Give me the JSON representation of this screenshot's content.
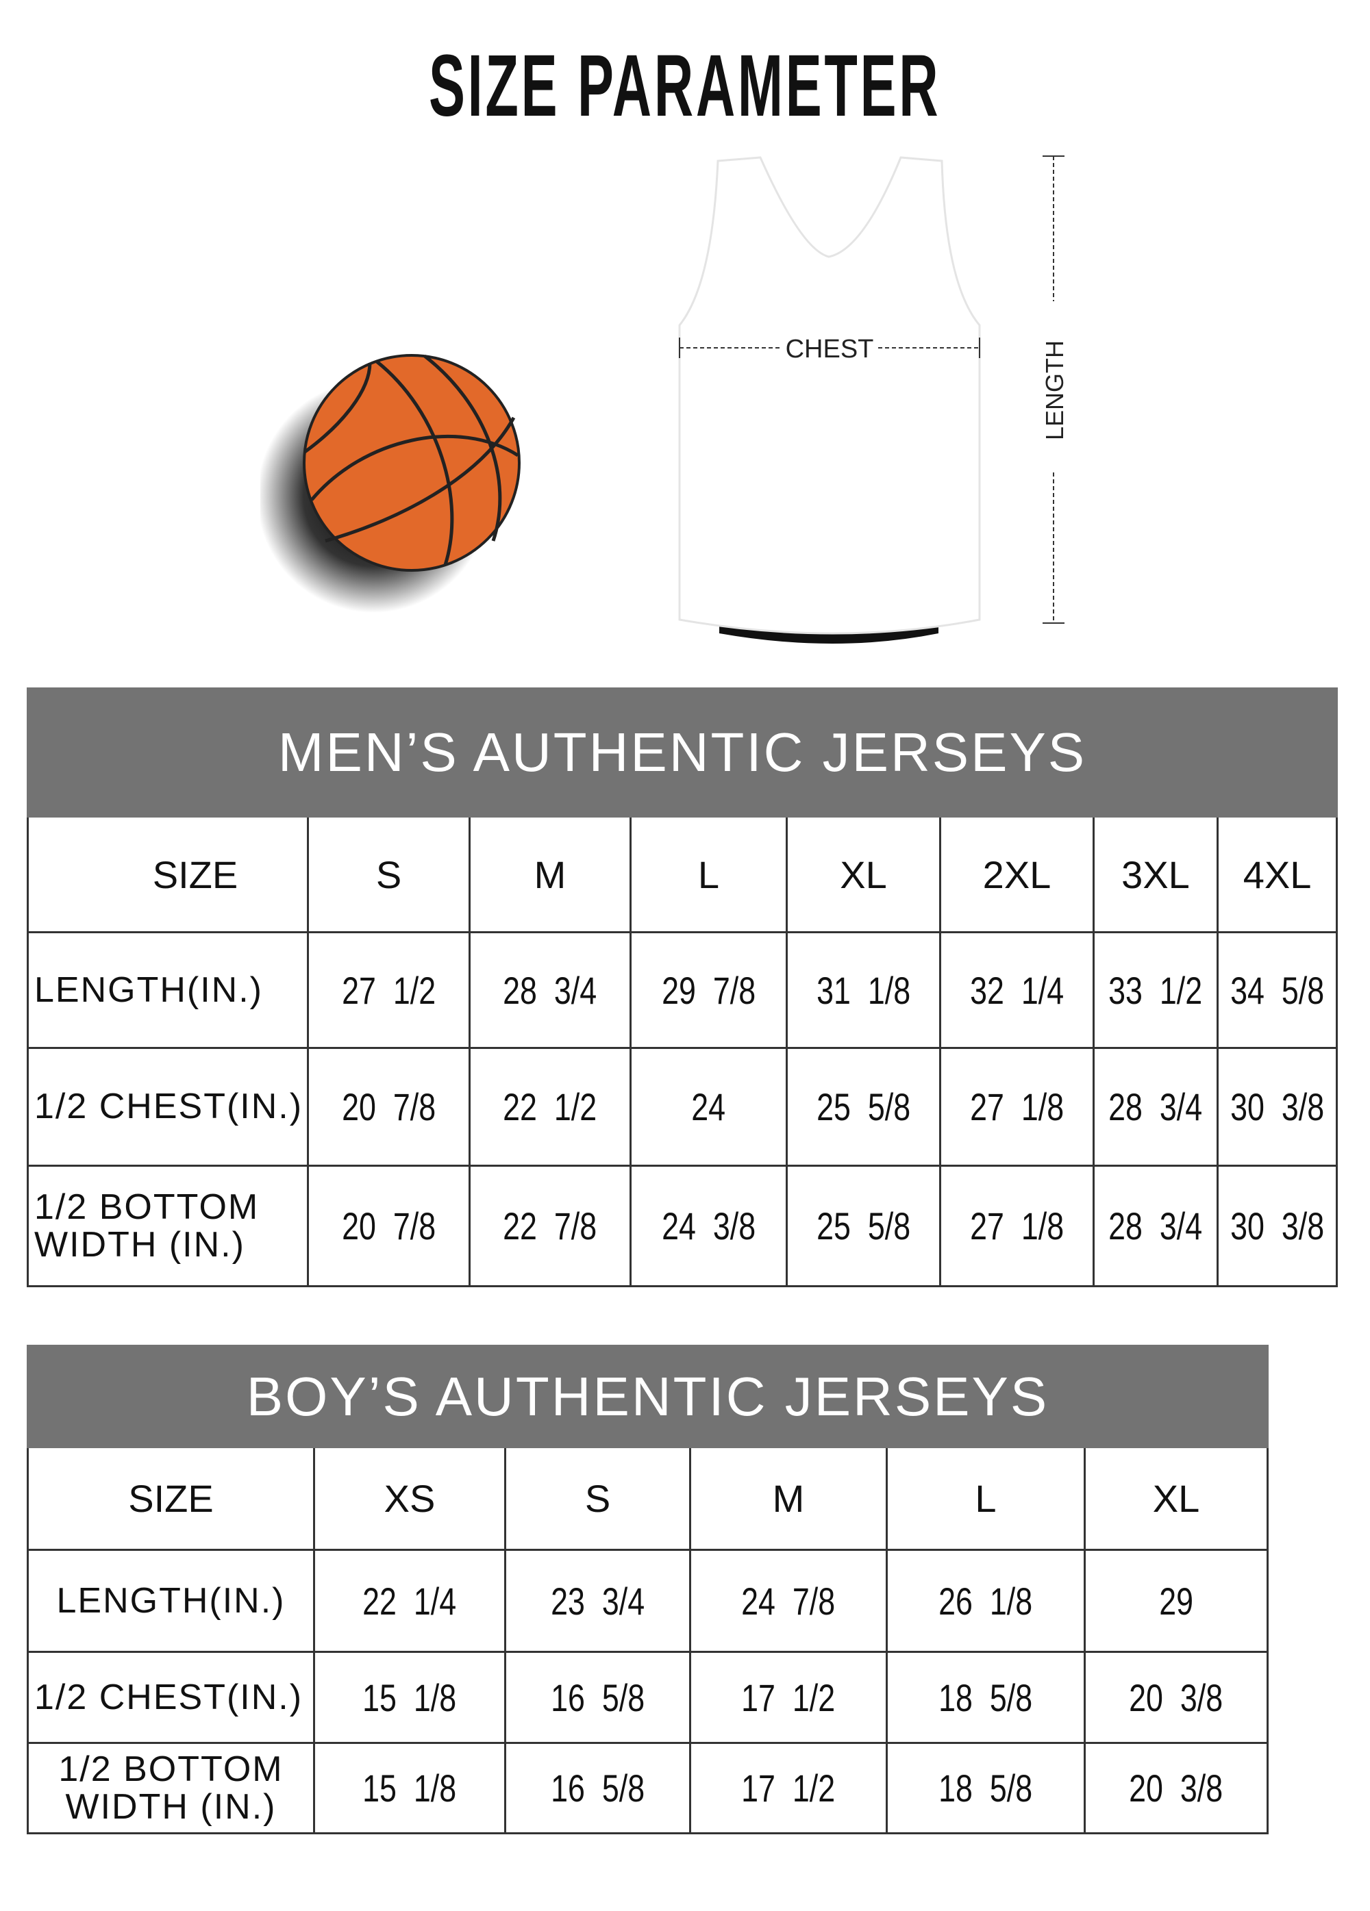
{
  "title": "SIZE PARAMETER",
  "diagram": {
    "chest_label": "CHEST",
    "length_label": "LENGTH",
    "ball_color": "#e2692a"
  },
  "colors": {
    "header_bg": "#737373",
    "header_text": "#ffffff"
  },
  "men": {
    "title": "MEN’S AUTHENTIC JERSEYS",
    "size_label": "SIZE",
    "sizes": [
      "S",
      "M",
      "L",
      "XL",
      "2XL",
      "3XL",
      "4XL"
    ],
    "rows": [
      {
        "label": "LENGTH(IN.)",
        "values": [
          "27  1/2",
          "28  3/4",
          "29  7/8",
          "31  1/8",
          "32  1/4",
          "33  1/2",
          "34  5/8"
        ]
      },
      {
        "label": "1/2 CHEST(IN.)",
        "values": [
          "20  7/8",
          "22  1/2",
          "24",
          "25  5/8",
          "27  1/8",
          "28  3/4",
          "30  3/8"
        ]
      },
      {
        "label": "1/2 BOTTOM WIDTH  (IN.)",
        "values": [
          "20  7/8",
          "22  7/8",
          "24  3/8",
          "25  5/8",
          "27  1/8",
          "28  3/4",
          "30  3/8"
        ]
      }
    ]
  },
  "boy": {
    "title": "BOY’S AUTHENTIC JERSEYS",
    "size_label": "SIZE",
    "sizes": [
      "XS",
      "S",
      "M",
      "L",
      "XL"
    ],
    "rows": [
      {
        "label": "LENGTH(IN.)",
        "values": [
          "22  1/4",
          "23  3/4",
          "24  7/8",
          "26  1/8",
          "29"
        ]
      },
      {
        "label": "1/2 CHEST(IN.)",
        "values": [
          "15  1/8",
          "16  5/8",
          "17  1/2",
          "18  5/8",
          "20  3/8"
        ]
      },
      {
        "label": "1/2 BOTTOM WIDTH  (IN.)",
        "values": [
          "15  1/8",
          "16  5/8",
          "17  1/2",
          "18  5/8",
          "20  3/8"
        ]
      }
    ]
  }
}
